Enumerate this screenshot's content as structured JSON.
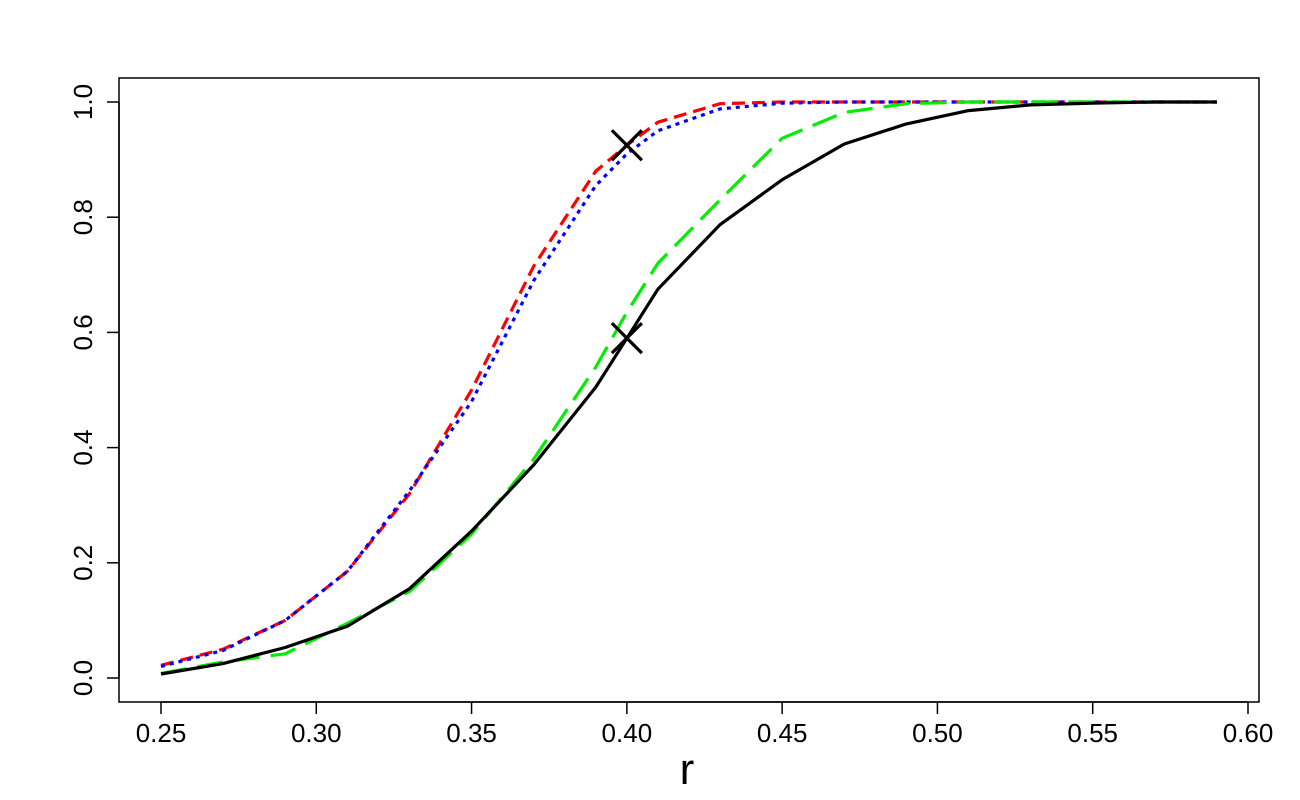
{
  "chart_data": {
    "type": "line",
    "title": "",
    "xlabel": "r",
    "ylabel": "",
    "xlim": [
      0.25,
      0.59
    ],
    "ylim": [
      0.0,
      1.0
    ],
    "x_ticks": [
      "0.25",
      "0.30",
      "0.35",
      "0.40",
      "0.45",
      "0.50",
      "0.55",
      "0.60"
    ],
    "y_ticks": [
      "0.0",
      "0.2",
      "0.4",
      "0.6",
      "0.8",
      "1.0"
    ],
    "grid": false,
    "legend": "none",
    "x": [
      0.25,
      0.27,
      0.29,
      0.31,
      0.33,
      0.35,
      0.37,
      0.39,
      0.4,
      0.41,
      0.43,
      0.45,
      0.47,
      0.49,
      0.51,
      0.53,
      0.55,
      0.57,
      0.59
    ],
    "series": [
      {
        "color": "#ff0000",
        "linestyle": "dashed",
        "values": [
          0.022,
          0.05,
          0.1,
          0.185,
          0.32,
          0.5,
          0.715,
          0.88,
          0.925,
          0.965,
          0.997,
          1.0,
          1.0,
          1.0,
          1.0,
          1.0,
          1.0,
          1.0,
          1.0
        ]
      },
      {
        "color": "#0000ff",
        "linestyle": "dotted",
        "values": [
          0.02,
          0.048,
          0.1,
          0.185,
          0.325,
          0.48,
          0.69,
          0.855,
          0.91,
          0.95,
          0.988,
          0.998,
          1.0,
          1.0,
          1.0,
          1.0,
          1.0,
          1.0,
          1.0
        ]
      },
      {
        "color": "#00ee00",
        "linestyle": "longdash",
        "values": [
          0.008,
          0.028,
          0.042,
          0.095,
          0.15,
          0.25,
          0.38,
          0.54,
          0.635,
          0.72,
          0.83,
          0.937,
          0.982,
          0.997,
          1.0,
          1.0,
          1.0,
          1.0,
          1.0
        ]
      },
      {
        "color": "#000000",
        "linestyle": "solid",
        "values": [
          0.007,
          0.025,
          0.053,
          0.09,
          0.155,
          0.255,
          0.37,
          0.505,
          0.59,
          0.675,
          0.787,
          0.865,
          0.927,
          0.962,
          0.985,
          0.995,
          0.998,
          1.0,
          1.0
        ]
      }
    ],
    "markers": [
      {
        "x": 0.4,
        "y": 0.925,
        "symbol": "cross"
      },
      {
        "x": 0.4,
        "y": 0.59,
        "symbol": "cross"
      }
    ]
  }
}
